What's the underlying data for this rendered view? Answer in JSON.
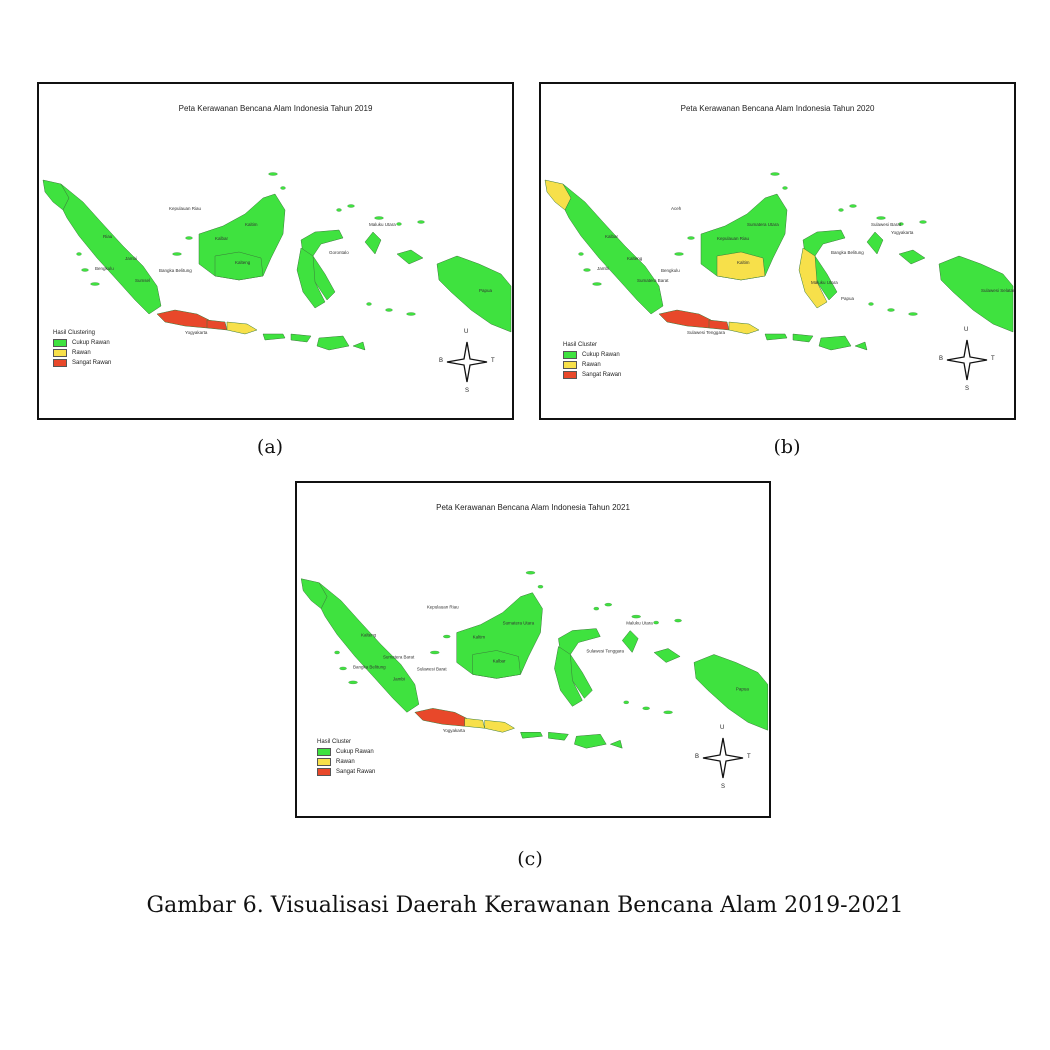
{
  "colors": {
    "cukup_rawan": "#3fe23f",
    "rawan": "#f7e04a",
    "sangat_rawan": "#e8482a",
    "sea": "#ffffff",
    "border": "#3a7a3a"
  },
  "panels": [
    {
      "id": "a",
      "title": "Peta Kerawanan Bencana Alam Indonesia Tahun 2019",
      "caption": "(a)",
      "legend": {
        "title": "Hasil Clustering",
        "items": [
          {
            "label": "Cukup Rawan",
            "color": "#3fe23f"
          },
          {
            "label": "Rawan",
            "color": "#f7e04a"
          },
          {
            "label": "Sangat Rawan",
            "color": "#e8482a"
          }
        ]
      },
      "compass": {
        "n": "U",
        "e": "T",
        "s": "S",
        "w": "B"
      },
      "classes": {
        "sumatra": "cukup_rawan",
        "aceh": "cukup_rawan",
        "kalimantan": "cukup_rawan",
        "kalteng": "cukup_rawan",
        "sulawesi": "cukup_rawan",
        "sulsel": "cukup_rawan",
        "papua": "cukup_rawan",
        "maluku": "cukup_rawan",
        "java_west": "sangat_rawan",
        "java_central": "sangat_rawan",
        "java_east": "rawan",
        "nusa": "cukup_rawan"
      },
      "place_labels": [
        "Kepulauan Riau",
        "Kaltim",
        "Kalbar",
        "Kalteng",
        "Riau",
        "Jambi",
        "Sumsel",
        "Bengkulu",
        "Bangka Belitung",
        "Gorontalo",
        "Maluku Utara",
        "Papua",
        "Yogyakarta"
      ]
    },
    {
      "id": "b",
      "title": "Peta Kerawanan Bencana Alam Indonesia Tahun 2020",
      "caption": "(b)",
      "legend": {
        "title": "Hasil Cluster",
        "items": [
          {
            "label": "Cukup Rawan",
            "color": "#3fe23f"
          },
          {
            "label": "Rawan",
            "color": "#f7e04a"
          },
          {
            "label": "Sangat Rawan",
            "color": "#e8482a"
          }
        ]
      },
      "compass": {
        "n": "U",
        "e": "T",
        "s": "S",
        "w": "B"
      },
      "classes": {
        "sumatra": "cukup_rawan",
        "aceh": "rawan",
        "kalimantan": "cukup_rawan",
        "kalteng": "rawan",
        "sulawesi": "cukup_rawan",
        "sulsel": "rawan",
        "papua": "cukup_rawan",
        "maluku": "cukup_rawan",
        "java_west": "sangat_rawan",
        "java_central": "sangat_rawan",
        "java_east": "rawan",
        "nusa": "cukup_rawan"
      },
      "place_labels": [
        "Aceh",
        "Sumatera Utara",
        "Kepulauan Riau",
        "Kaltim",
        "Kalbar",
        "Kalteng",
        "Sumatera Barat",
        "Jambi",
        "Bengkulu",
        "Bangka Belitung",
        "Sulawesi Barat",
        "Sulawesi Selatan",
        "Sulawesi Tenggara",
        "Maluku Utara",
        "Papua",
        "Yogyakarta"
      ]
    },
    {
      "id": "c",
      "title": "Peta Kerawanan Bencana Alam Indonesia Tahun 2021",
      "caption": "(c)",
      "legend": {
        "title": "Hasil Cluster",
        "items": [
          {
            "label": "Cukup Rawan",
            "color": "#3fe23f"
          },
          {
            "label": "Rawan",
            "color": "#f7e04a"
          },
          {
            "label": "Sangat Rawan",
            "color": "#e8482a"
          }
        ]
      },
      "compass": {
        "n": "U",
        "e": "T",
        "s": "S",
        "w": "B"
      },
      "classes": {
        "sumatra": "cukup_rawan",
        "aceh": "cukup_rawan",
        "kalimantan": "cukup_rawan",
        "kalteng": "cukup_rawan",
        "sulawesi": "cukup_rawan",
        "sulsel": "cukup_rawan",
        "papua": "cukup_rawan",
        "maluku": "cukup_rawan",
        "java_west": "sangat_rawan",
        "java_central": "rawan",
        "java_east": "rawan",
        "nusa": "cukup_rawan"
      },
      "place_labels": [
        "Kepulauan Riau",
        "Sumatera Utara",
        "Kaltim",
        "Kalbar",
        "Kalteng",
        "Sumatera Barat",
        "Jambi",
        "Bangka Belitung",
        "Sulawesi Barat",
        "Sulawesi Tenggara",
        "Maluku Utara",
        "Papua",
        "Yogyakarta"
      ]
    }
  ],
  "figure_caption": "Gambar 6. Visualisasi Daerah Kerawanan Bencana Alam 2019-2021"
}
